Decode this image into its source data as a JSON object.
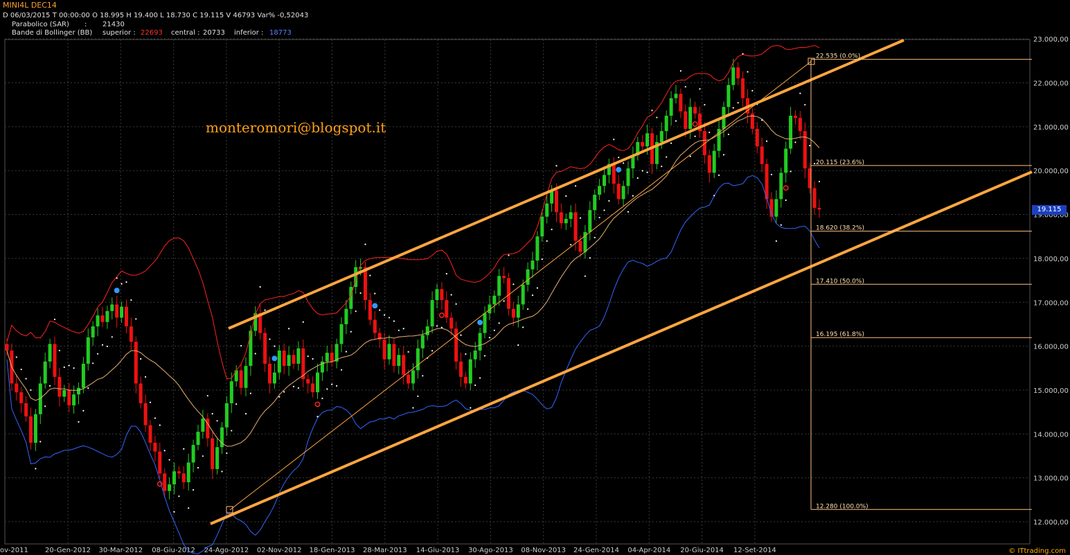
{
  "header": {
    "instrument": "MINI4L DEC14",
    "ohlc_line": "D 06/03/2015  T 00:00:00   O 18.995  H 19.400  L 18.730  C 19.115   V 46793  Var% -0,52043",
    "sar_label": "Parabolico (SAR)",
    "sar_sep": ":",
    "sar_value": "21430",
    "bb_label": "Bande di Bollinger (BB)",
    "bb_superior_label": "superior :",
    "bb_superior_value": "22693",
    "bb_central_label": "central :",
    "bb_central_value": "20733",
    "bb_inferior_label": "inferior :",
    "bb_inferior_value": "18773"
  },
  "watermark": "monteromori@blogspot.it",
  "credit": "© ITtrading.com",
  "last_price_tag": "19.115",
  "colors": {
    "background": "#000000",
    "grid": "#3a3a3a",
    "up_candle": "#22cc22",
    "down_candle": "#ee1111",
    "bb_upper": "#ff2222",
    "bb_mid": "#e8b070",
    "bb_lower": "#3366ff",
    "trendline": "#ffa640",
    "fib": "#ffc080",
    "sar": "#ffffff",
    "header_red": "#ff3030",
    "header_blue": "#5580ff"
  },
  "chart_data": {
    "type": "candlestick",
    "title": "MINI4L DEC14",
    "x_tick_labels": [
      "ov-2011",
      "20-Gen-2012",
      "30-Mar-2012",
      "08-Giu-2012",
      "24-Ago-2012",
      "02-Nov-2012",
      "18-Gen-2013",
      "28-Mar-2013",
      "14-Giu-2013",
      "30-Ago-2013",
      "08-Nov-2013",
      "24-Gen-2014",
      "04-Apr-2014",
      "20-Giu-2014",
      "12-Set-2014"
    ],
    "y_tick_labels": [
      "12.000,00",
      "13.000,00",
      "14.000,00",
      "15.000,00",
      "16.000,00",
      "17.000,00",
      "18.000,00",
      "19.000,00",
      "20.000,00",
      "21.000,00",
      "22.000,00",
      "23.000,00"
    ],
    "ylim": [
      11700,
      23100
    ],
    "grid": true,
    "last_close": 19115,
    "closes": [
      15900,
      15150,
      14950,
      14700,
      14400,
      13800,
      14450,
      15150,
      15650,
      16050,
      15300,
      14850,
      15000,
      14650,
      14900,
      15050,
      15600,
      16200,
      16450,
      16700,
      16550,
      16800,
      16950,
      16650,
      16900,
      16450,
      16100,
      15150,
      14700,
      14200,
      13800,
      13600,
      13100,
      12700,
      12850,
      13150,
      13100,
      12900,
      13350,
      13750,
      14050,
      14350,
      13900,
      13200,
      13700,
      14150,
      14700,
      15200,
      15450,
      15050,
      15550,
      16350,
      16750,
      16300,
      15600,
      15150,
      15400,
      15900,
      15550,
      15800,
      15600,
      15950,
      15250,
      15150,
      14950,
      15400,
      15650,
      15850,
      15650,
      16050,
      16500,
      16850,
      17350,
      17800,
      17800,
      17050,
      16600,
      16300,
      16150,
      15700,
      16050,
      15550,
      15800,
      15350,
      15150,
      15450,
      15950,
      16250,
      16450,
      17050,
      17300,
      17050,
      16650,
      16400,
      15650,
      15300,
      15150,
      15700,
      15900,
      16300,
      16750,
      16950,
      17150,
      17600,
      17550,
      16850,
      16650,
      16950,
      17400,
      17750,
      17950,
      18500,
      18950,
      19250,
      19550,
      19050,
      18800,
      18900,
      19050,
      18400,
      18150,
      18600,
      19100,
      19450,
      19650,
      19900,
      20150,
      19700,
      19350,
      19650,
      20050,
      20350,
      20650,
      20550,
      20850,
      20150,
      20650,
      20900,
      21250,
      21650,
      21750,
      21350,
      20950,
      21450,
      21300,
      20900,
      20350,
      19950,
      20450,
      20950,
      21450,
      21950,
      22350,
      22100,
      21650,
      21300,
      20950,
      20550,
      20150,
      19350,
      18950,
      19350,
      19950,
      20500,
      21250,
      21200,
      20900,
      20050,
      19600,
      19150,
      19115
    ]
  }
}
